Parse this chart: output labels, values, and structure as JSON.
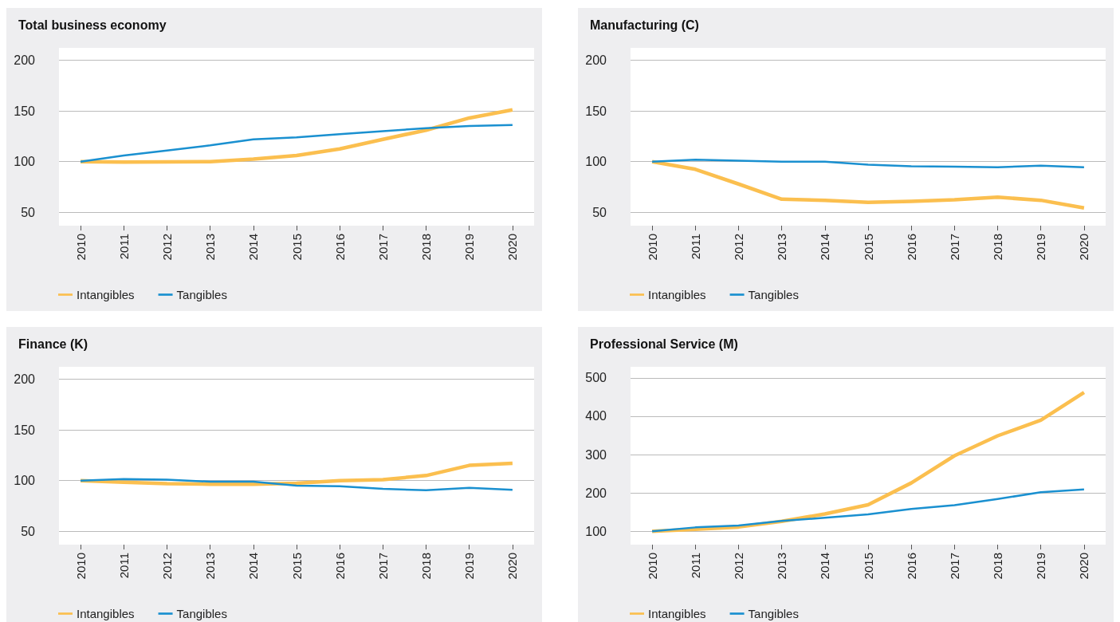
{
  "chart_data": [
    {
      "type": "line",
      "title": "Total business economy",
      "categories": [
        "2010",
        "2011",
        "2012",
        "2013",
        "2014",
        "2015",
        "2016",
        "2017",
        "2018",
        "2019",
        "2020"
      ],
      "series": [
        {
          "name": "Intangibles",
          "color": "#fbbf4f",
          "values": [
            100,
            99.5,
            99.7,
            100,
            102.5,
            106,
            112.5,
            122,
            131,
            143,
            151
          ]
        },
        {
          "name": "Tangibles",
          "color": "#1a90d0",
          "values": [
            100,
            106,
            111,
            116,
            122,
            124,
            127,
            130,
            133,
            135,
            136
          ]
        }
      ],
      "ylim": [
        37,
        212
      ],
      "yticks": [
        50,
        100,
        150,
        200
      ],
      "grid": "y",
      "legend": "bottom left",
      "marker": "none"
    },
    {
      "type": "line",
      "title": "Manufacturing (C)",
      "categories": [
        "2010",
        "2011",
        "2012",
        "2013",
        "2014",
        "2015",
        "2016",
        "2017",
        "2018",
        "2019",
        "2020"
      ],
      "series": [
        {
          "name": "Intangibles",
          "color": "#fbbf4f",
          "values": [
            100,
            92.5,
            78,
            63,
            62,
            60,
            61,
            62.5,
            65,
            62,
            54.5
          ]
        },
        {
          "name": "Tangibles",
          "color": "#1a90d0",
          "values": [
            100,
            102,
            101,
            100,
            100,
            97,
            95.5,
            95,
            94.5,
            96,
            94.5
          ]
        }
      ],
      "ylim": [
        37,
        212
      ],
      "yticks": [
        50,
        100,
        150,
        200
      ],
      "grid": "y",
      "legend": "bottom left",
      "marker": "none"
    },
    {
      "type": "line",
      "title": "Finance (K)",
      "categories": [
        "2010",
        "2011",
        "2012",
        "2013",
        "2014",
        "2015",
        "2016",
        "2017",
        "2018",
        "2019",
        "2020"
      ],
      "series": [
        {
          "name": "Intangibles",
          "color": "#fbbf4f",
          "values": [
            100,
            98.5,
            97,
            96.5,
            96.5,
            97.5,
            100,
            101,
            105,
            115,
            117
          ]
        },
        {
          "name": "Tangibles",
          "color": "#1a90d0",
          "values": [
            100,
            101.5,
            101,
            99,
            99,
            95,
            94.5,
            92,
            90.5,
            93,
            91
          ]
        }
      ],
      "ylim": [
        37,
        212
      ],
      "yticks": [
        50,
        100,
        150,
        200
      ],
      "grid": "y",
      "legend": "bottom left",
      "marker": "none"
    },
    {
      "type": "line",
      "title": "Professional Service (M)",
      "categories": [
        "2010",
        "2011",
        "2012",
        "2013",
        "2014",
        "2015",
        "2016",
        "2017",
        "2018",
        "2019",
        "2020"
      ],
      "series": [
        {
          "name": "Intangibles",
          "color": "#fbbf4f",
          "values": [
            100,
            105,
            111,
            126,
            145,
            169,
            226,
            297,
            349,
            390,
            462
          ]
        },
        {
          "name": "Tangibles",
          "color": "#1a90d0",
          "values": [
            100,
            110,
            115,
            127,
            135,
            144,
            158,
            168,
            184,
            202,
            209
          ]
        }
      ],
      "ylim": [
        65,
        529
      ],
      "yticks": [
        100,
        200,
        300,
        400,
        500
      ],
      "grid": "y",
      "legend": "bottom left",
      "marker": "none"
    }
  ]
}
